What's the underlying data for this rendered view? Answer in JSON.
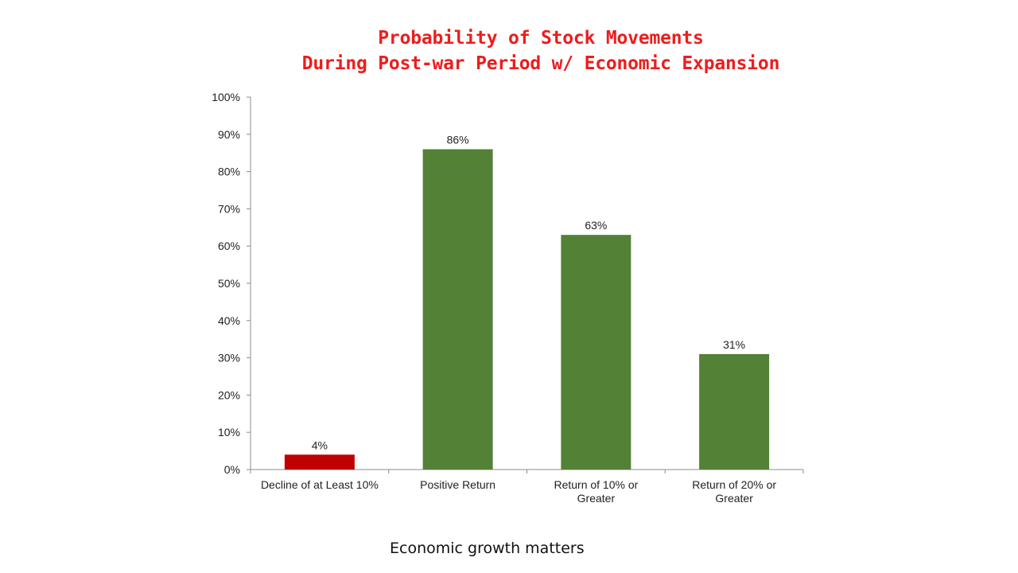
{
  "chart_data": {
    "type": "bar",
    "title_lines": [
      "Probability of Stock Movements",
      "During Post-war Period w/ Economic Expansion"
    ],
    "categories": [
      [
        "Decline of at Least 10%"
      ],
      [
        "Positive Return"
      ],
      [
        "Return of 10% or",
        "Greater"
      ],
      [
        "Return of 20% or",
        "Greater"
      ]
    ],
    "values": [
      4,
      86,
      63,
      31
    ],
    "data_labels": [
      "4%",
      "86%",
      "63%",
      "31%"
    ],
    "bar_colors": [
      "#c00000",
      "#538135",
      "#538135",
      "#538135"
    ],
    "ylim": [
      0,
      100
    ],
    "yticks": [
      0,
      10,
      20,
      30,
      40,
      50,
      60,
      70,
      80,
      90,
      100
    ],
    "ytick_labels": [
      "0%",
      "10%",
      "20%",
      "30%",
      "40%",
      "50%",
      "60%",
      "70%",
      "80%",
      "90%",
      "100%"
    ],
    "grid": false,
    "legend": "none"
  },
  "caption": "Economic growth matters",
  "colors": {
    "title": "#ee1c1c",
    "axis": "#8c8c8c"
  }
}
